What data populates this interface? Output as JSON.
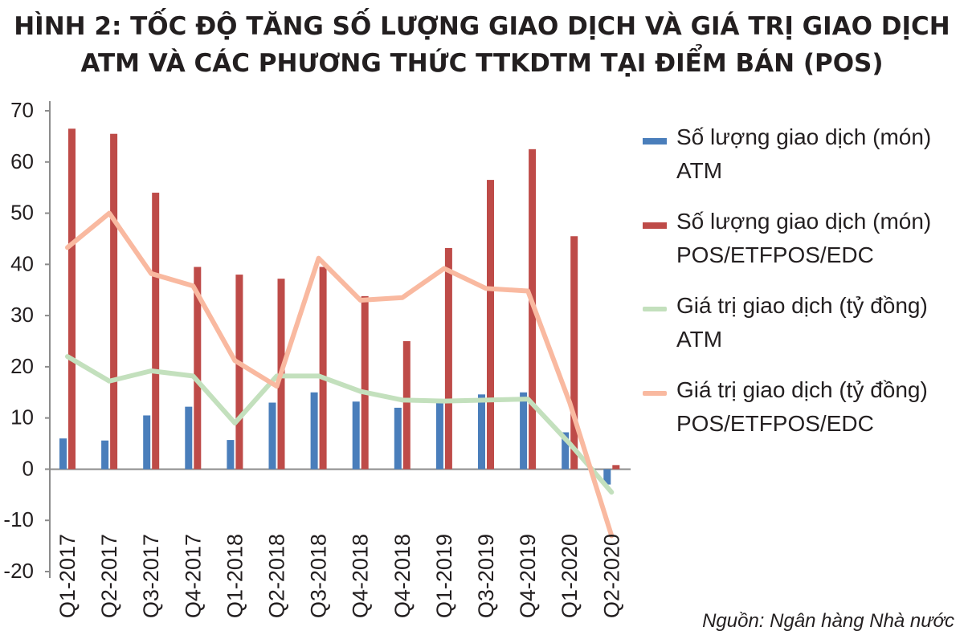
{
  "title_line1": "HÌNH 2: TỐC ĐỘ TĂNG SỐ LƯỢNG GIAO DỊCH VÀ GIÁ TRỊ GIAO DỊCH",
  "title_line2": "ATM VÀ CÁC PHƯƠNG THỨC TTKDTM TẠI ĐIỂM BÁN (POS)",
  "source": "Nguồn: Ngân hàng Nhà nước",
  "colors": {
    "atm_count": "#4a7ebb",
    "pos_count": "#be4b48",
    "atm_value": "#c3e0bd",
    "pos_value": "#f9b9a0",
    "axis": "#8c8c8c"
  },
  "chart_data": {
    "type": "bar",
    "categories": [
      "Q1-2017",
      "Q2-2017",
      "Q3-2017",
      "Q4-2017",
      "Q1-2018",
      "Q2-2018",
      "Q3-2018",
      "Q4-2018",
      "Q4-2018",
      "Q1-2019",
      "Q3-2019",
      "Q4-2019",
      "Q1-2020",
      "Q2-2020"
    ],
    "ylim": [
      -20,
      70
    ],
    "yticks": [
      70,
      60,
      50,
      40,
      30,
      20,
      10,
      0,
      -10,
      -20
    ],
    "grid": false,
    "legend_position": "right",
    "series": [
      {
        "name_line1": "Số lượng giao dịch (món)",
        "name_line2": "ATM",
        "kind": "bar",
        "values": [
          6,
          5.6,
          10.5,
          12.2,
          5.7,
          13,
          15,
          13.2,
          12,
          13.5,
          14.6,
          15,
          7.2,
          -3
        ]
      },
      {
        "name_line1": "Số lượng giao dịch (món)",
        "name_line2": "POS/ETFPOS/EDC",
        "kind": "bar",
        "values": [
          66.5,
          65.5,
          54,
          39.5,
          38,
          37.2,
          39.5,
          33.8,
          25,
          43.2,
          56.5,
          62.5,
          45.5,
          0.8
        ]
      },
      {
        "name_line1": "Giá trị giao dịch (tỷ đồng)",
        "name_line2": "ATM",
        "kind": "line",
        "values": [
          22,
          17.2,
          19.2,
          18.2,
          9,
          18.2,
          18.2,
          15.2,
          13.5,
          13.3,
          13.5,
          13.7,
          5,
          -4.5
        ]
      },
      {
        "name_line1": "Giá trị giao dịch (tỷ đồng)",
        "name_line2": "POS/ETFPOS/EDC",
        "kind": "line",
        "values": [
          43.3,
          50,
          38.2,
          35.8,
          21.2,
          16.2,
          41.2,
          33,
          33.5,
          39.2,
          35.3,
          34.8,
          13,
          -13
        ]
      }
    ]
  }
}
